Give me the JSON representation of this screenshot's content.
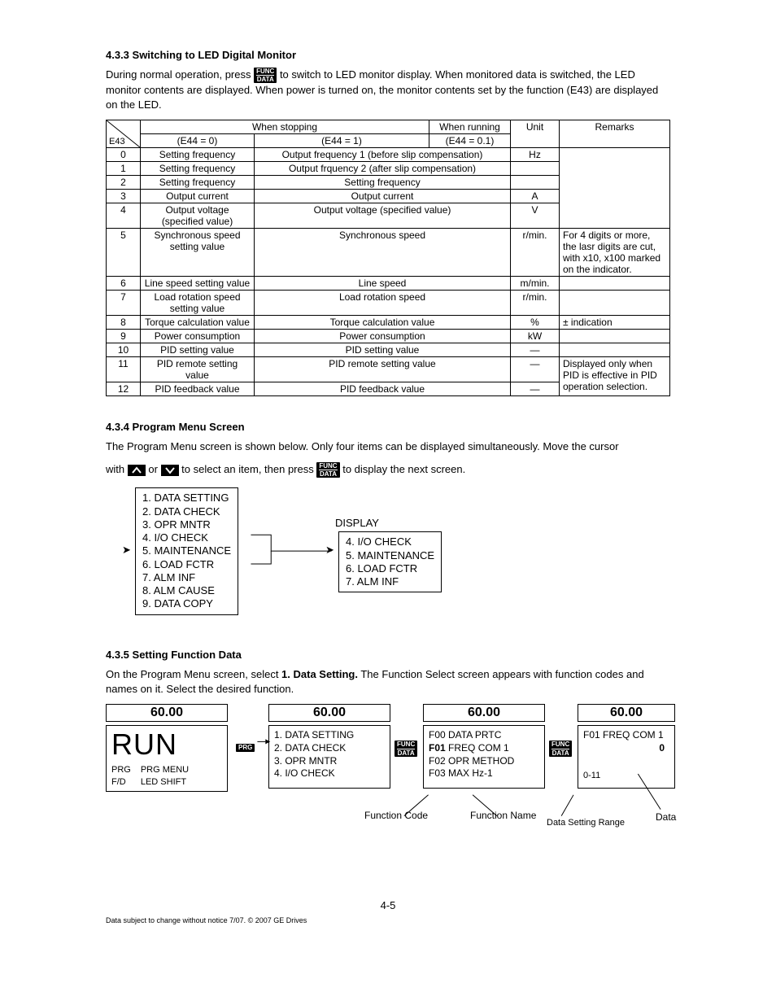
{
  "sec433": {
    "heading": "4.3.3 Switching to LED Digital Monitor",
    "para_part1": "During normal operation, press ",
    "para_part2": " to switch to LED monitor display. When monitored data is switched, the LED monitor contents are displayed.  When power is turned on, the monitor contents set by the function (E43) are displayed on the LED."
  },
  "key_func_data": {
    "top": "FUNC",
    "bot": "DATA"
  },
  "key_prg": "PRG",
  "table": {
    "head": {
      "when_stopping": "When stopping",
      "when_running": "When running",
      "unit": "Unit",
      "remarks": "Remarks",
      "e43": "E43",
      "e44_0": "(E44 = 0)",
      "e44_1": "(E44 = 1)",
      "e44_01": "(E44 = 0.1)"
    },
    "rows": [
      {
        "e43": "0",
        "col0": "Setting frequency",
        "merged": "Output frequency 1 (before slip compensation)",
        "unit": "Hz",
        "remarks": ""
      },
      {
        "e43": "1",
        "col0": "Setting frequency",
        "merged": "Output frquency 2 (after slip compensation)",
        "unit": "",
        "remarks": ""
      },
      {
        "e43": "2",
        "col0": "Setting frequency",
        "merged": "Setting frequency",
        "unit": "",
        "remarks": ""
      },
      {
        "e43": "3",
        "col0": "Output current",
        "merged": "Output current",
        "unit": "A",
        "remarks": ""
      },
      {
        "e43": "4",
        "col0": "Output voltage (specified value)",
        "merged": "Output voltage (specified value)",
        "unit": "V",
        "remarks": ""
      },
      {
        "e43": "5",
        "col0": "Synchronous speed setting value",
        "merged": "Synchronous speed",
        "unit": "r/min.",
        "remarks": "For 4 digits or more, the lasr digits are cut, with x10, x100 marked on the indicator."
      },
      {
        "e43": "6",
        "col0": "Line speed setting value",
        "merged": "Line speed",
        "unit": "m/min.",
        "remarks": ""
      },
      {
        "e43": "7",
        "col0": "Load rotation speed setting value",
        "merged": "Load rotation speed",
        "unit": "r/min.",
        "remarks": ""
      },
      {
        "e43": "8",
        "col0": "Torque calculation value",
        "merged": "Torque calculation value",
        "unit": "%",
        "remarks": "± indication"
      },
      {
        "e43": "9",
        "col0": "Power consumption",
        "merged": "Power consumption",
        "unit": "kW",
        "remarks": ""
      },
      {
        "e43": "10",
        "col0": "PID setting value",
        "merged": "PID setting value",
        "unit": "—",
        "remarks": ""
      },
      {
        "e43": "11",
        "col0": "PID remote setting value",
        "merged": "PID remote setting value",
        "unit": "—",
        "remarks": "Displayed only when PID is effective in PID operation selection."
      },
      {
        "e43": "12",
        "col0": "PID feedback value",
        "merged": "PID feedback value",
        "unit": "—",
        "remarks": ""
      }
    ]
  },
  "sec434": {
    "heading": "4.3.4 Program Menu Screen",
    "para1": "The Program Menu screen is shown below. Only four items can be displayed simultaneously. Move the cursor",
    "para2_a": "with ",
    "para2_b": " or ",
    "para2_c": " to select an item, then press ",
    "para2_d": " to display the next screen.",
    "display_label": "DISPLAY",
    "menu_all": [
      "1. DATA SETTING",
      "2. DATA CHECK",
      "3. OPR MNTR",
      "4. I/O CHECK",
      "5. MAINTENANCE",
      "6. LOAD FCTR",
      "7. ALM INF",
      "8. ALM CAUSE",
      "9. DATA COPY"
    ],
    "menu_4": [
      "4. I/O CHECK",
      "5. MAINTENANCE",
      "6. LOAD FCTR",
      "7. ALM INF"
    ]
  },
  "sec435": {
    "heading": "4.3.5 Setting Function Data",
    "para_a": "On the Program Menu screen, select ",
    "para_bold": "1. Data Setting.",
    "para_b": "  The Function Select screen appears with function codes and names on it. Select the desired function.",
    "led_value": "60.00",
    "run_label": "RUN",
    "run_btm": {
      "c1a": "PRG",
      "c1b": "F/D",
      "c2a": "PRG MENU",
      "c2b": "LED SHIFT"
    },
    "lcd2": [
      "1. DATA SETTING",
      "2. DATA CHECK",
      "3. OPR MNTR",
      "4. I/O CHECK"
    ],
    "lcd3": [
      "F00 DATA PRTC",
      "F01 FREQ COM 1",
      "F02 OPR METHOD",
      "F03 MAX Hz-1"
    ],
    "lcd3_bold_index": 1,
    "lcd4": {
      "top": "F01 FREQ COM 1",
      "mid": "0",
      "bot": "0-11"
    },
    "callouts": {
      "func_code": "Function Code",
      "func_name": "Function Name",
      "range": "Data Setting Range",
      "data": "Data"
    }
  },
  "page_num": "4-5",
  "footer": "Data subject to change without notice 7/07. © 2007 GE Drives"
}
